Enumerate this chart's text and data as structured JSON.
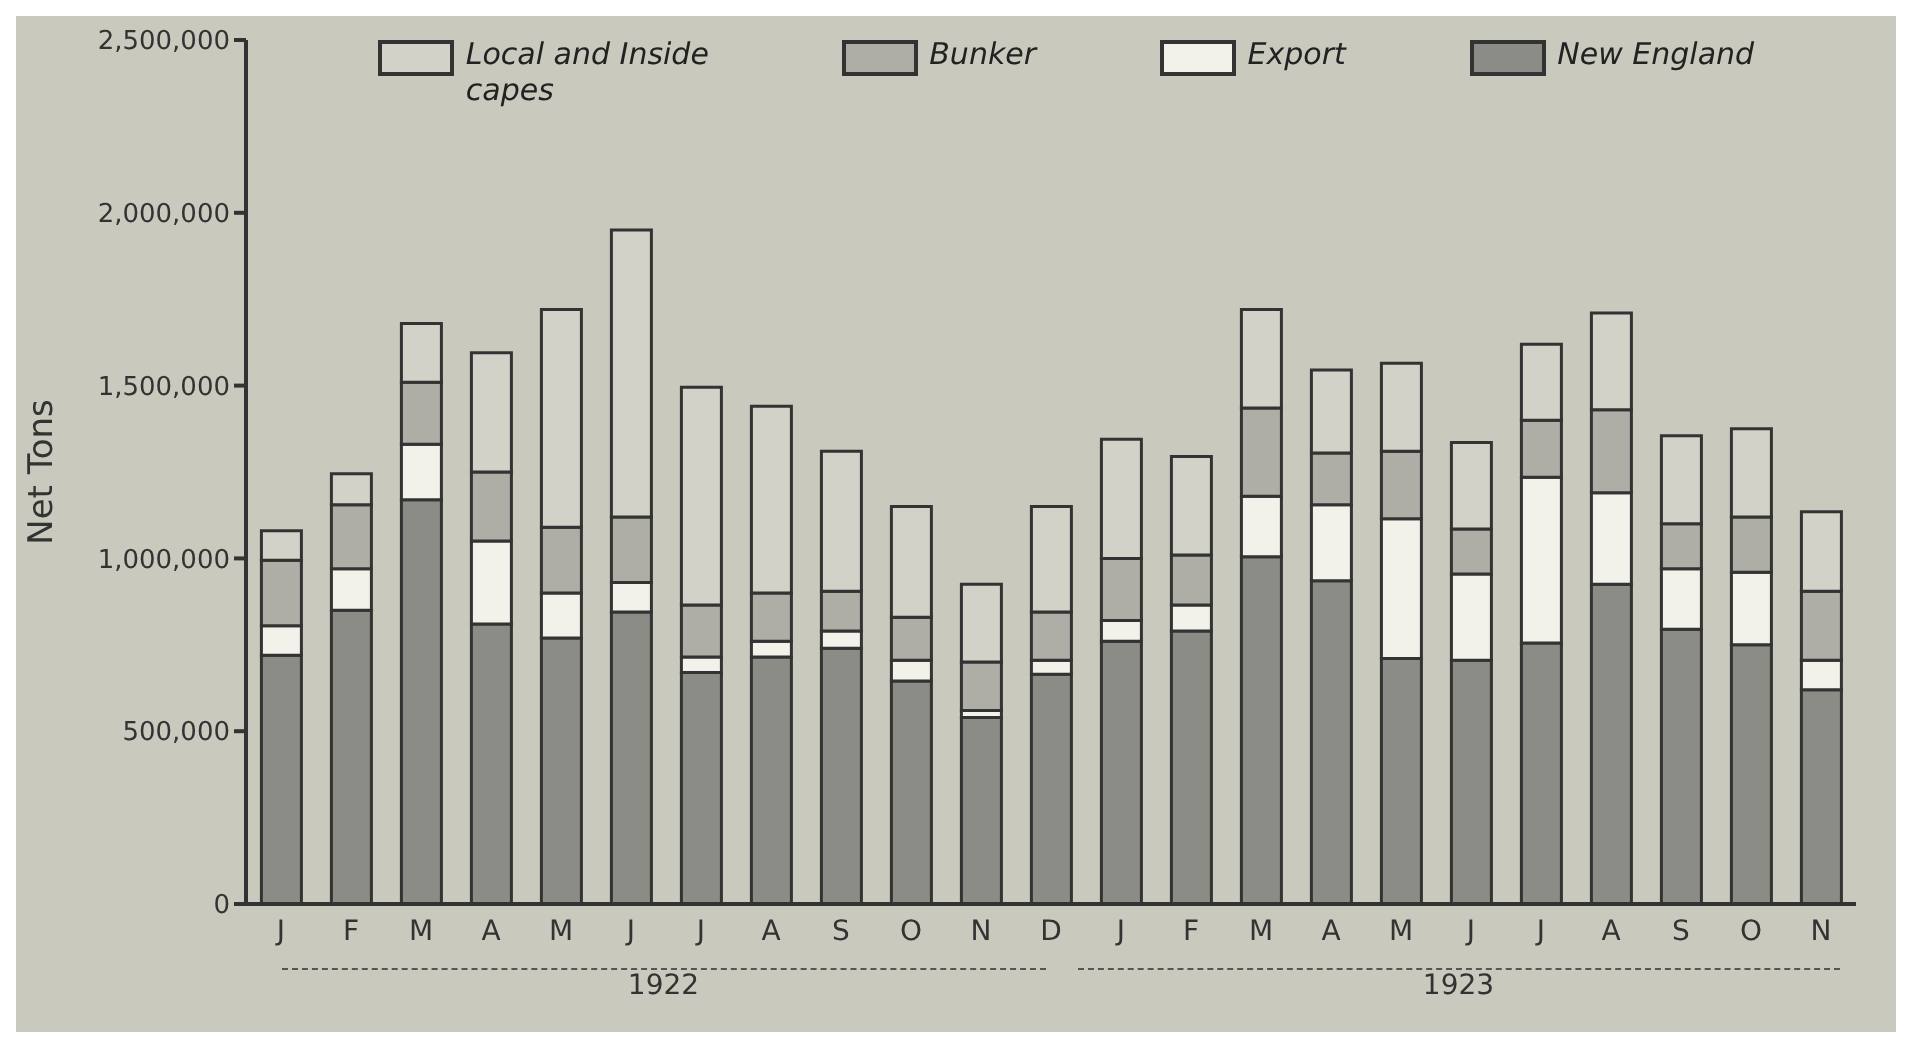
{
  "chart_data": {
    "type": "bar",
    "stacked": true,
    "ylabel": "Net Tons",
    "categories": [
      "J",
      "F",
      "M",
      "A",
      "M",
      "J",
      "J",
      "A",
      "S",
      "O",
      "N",
      "D",
      "J",
      "F",
      "M",
      "A",
      "M",
      "J",
      "J",
      "A",
      "S",
      "O",
      "N"
    ],
    "series": [
      {
        "name": "New England",
        "color": "#8c8c86",
        "values": [
          720000,
          850000,
          1170000,
          810000,
          770000,
          845000,
          670000,
          715000,
          740000,
          645000,
          540000,
          665000,
          760000,
          790000,
          1005000,
          935000,
          710000,
          705000,
          755000,
          925000,
          795000,
          750000,
          620000
        ]
      },
      {
        "name": "Export",
        "color": "#f2f2ea",
        "values": [
          85000,
          120000,
          160000,
          240000,
          130000,
          85000,
          45000,
          45000,
          50000,
          60000,
          20000,
          40000,
          60000,
          75000,
          175000,
          220000,
          405000,
          250000,
          480000,
          265000,
          175000,
          210000,
          85000
        ]
      },
      {
        "name": "Bunker",
        "color": "#aeaea6",
        "values": [
          190000,
          185000,
          180000,
          200000,
          190000,
          190000,
          150000,
          140000,
          115000,
          125000,
          140000,
          140000,
          180000,
          145000,
          255000,
          150000,
          195000,
          130000,
          165000,
          240000,
          130000,
          160000,
          200000
        ]
      },
      {
        "name": "Local and Inside capes",
        "color": "#d2d2c8",
        "values": [
          85000,
          90000,
          170000,
          345000,
          630000,
          830000,
          630000,
          540000,
          405000,
          320000,
          225000,
          305000,
          345000,
          285000,
          285000,
          240000,
          255000,
          250000,
          220000,
          280000,
          255000,
          255000,
          230000
        ]
      }
    ],
    "ylim": [
      0,
      2500000
    ],
    "yticks": [
      0,
      {
        "value": 500000,
        "label": "500,000"
      },
      {
        "value": 1000000,
        "label": "1,000,000"
      },
      {
        "value": 1500000,
        "label": "1,500,000"
      },
      {
        "value": 2000000,
        "label": "2,000,000"
      },
      {
        "value": 2500000,
        "label": "2,500,000"
      }
    ],
    "grid": false,
    "legend": "top",
    "annotations": [
      "1922",
      "1923"
    ]
  }
}
